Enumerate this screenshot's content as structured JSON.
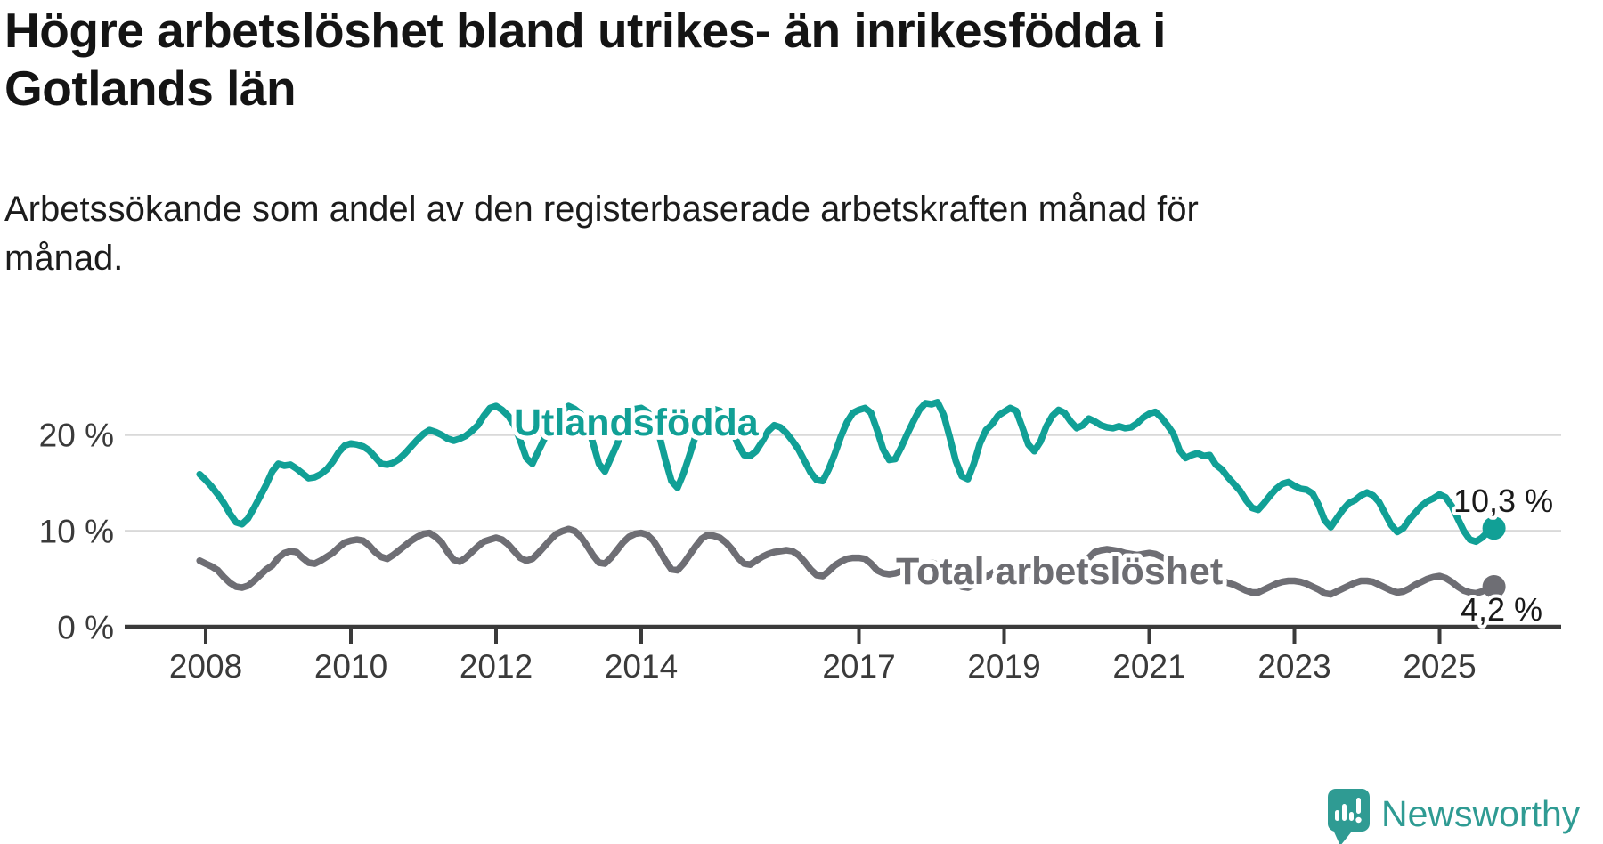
{
  "header": {
    "title": "Högre arbetslöshet bland utrikes- än inrikesfödda i\nGotlands län",
    "subtitle": "Arbetssökande som andel av den registerbaserade arbetskraften månad för\nmånad."
  },
  "branding": {
    "name": "Newsworthy",
    "icon": "speech-bubble-bar-chart",
    "color": "#2f9b93"
  },
  "colors": {
    "accent_teal": "#11a096",
    "line_gray": "#6e6e74",
    "label_gray": "#6d6d72",
    "grid": "#d9d9d9",
    "axis": "#3a3a3a",
    "text": "#1a1a1a"
  },
  "chart_data": {
    "type": "line",
    "title": "Högre arbetslöshet bland utrikes- än inrikesfödda i Gotlands län",
    "subtitle": "Arbetssökande som andel av den registerbaserade arbetskraften månad för månad.",
    "unit": "%",
    "interval": "monthly",
    "start": "2007-12",
    "end": "2025-10",
    "grid": "horizontal",
    "ylim": [
      0,
      24.5
    ],
    "y_ticks": [
      {
        "value": 0,
        "label": "0 %"
      },
      {
        "value": 10,
        "label": "10 %"
      },
      {
        "value": 20,
        "label": "20 %"
      }
    ],
    "x_tick_years": [
      {
        "year": 2008,
        "label": "2008"
      },
      {
        "year": 2010,
        "label": "2010"
      },
      {
        "year": 2012,
        "label": "2012"
      },
      {
        "year": 2014,
        "label": "2014"
      },
      {
        "year": 2017,
        "label": "2017"
      },
      {
        "year": 2019,
        "label": "2019"
      },
      {
        "year": 2021,
        "label": "2021"
      },
      {
        "year": 2023,
        "label": "2023"
      },
      {
        "year": 2025,
        "label": "2025"
      }
    ],
    "series": [
      {
        "name": "Utlandsfödda",
        "color": "#11a096",
        "final_label": "10,3 %",
        "final_value": 10.3,
        "values": [
          15.9,
          15.3,
          14.6,
          13.8,
          12.9,
          11.8,
          10.9,
          10.7,
          11.3,
          12.4,
          13.6,
          14.8,
          16.2,
          17.0,
          16.8,
          16.9,
          16.5,
          16.0,
          15.5,
          15.6,
          15.9,
          16.4,
          17.2,
          18.2,
          18.9,
          19.1,
          19.0,
          18.8,
          18.4,
          17.7,
          17.0,
          16.9,
          17.1,
          17.5,
          18.1,
          18.8,
          19.5,
          20.1,
          20.5,
          20.3,
          20.0,
          19.6,
          19.4,
          19.6,
          19.9,
          20.4,
          21.0,
          22.0,
          22.8,
          23.0,
          22.6,
          22.0,
          21.0,
          19.4,
          17.6,
          17.0,
          18.3,
          19.6,
          20.6,
          21.5,
          22.5,
          23.0,
          22.7,
          22.2,
          21.2,
          19.2,
          17.0,
          16.2,
          17.6,
          19.0,
          20.6,
          21.9,
          22.7,
          22.8,
          22.4,
          21.6,
          19.9,
          17.4,
          15.2,
          14.5,
          16.0,
          17.9,
          19.9,
          21.4,
          22.4,
          22.7,
          22.5,
          21.8,
          20.6,
          19.0,
          17.9,
          17.8,
          18.3,
          19.3,
          20.4,
          21.0,
          20.8,
          20.2,
          19.4,
          18.5,
          17.3,
          16.1,
          15.3,
          15.2,
          16.4,
          18.0,
          19.8,
          21.3,
          22.3,
          22.6,
          22.8,
          22.3,
          20.5,
          18.5,
          17.4,
          17.5,
          18.7,
          20.1,
          21.4,
          22.6,
          23.3,
          23.2,
          23.4,
          22.1,
          19.8,
          17.3,
          15.7,
          15.4,
          17.0,
          19.1,
          20.5,
          21.1,
          22.0,
          22.4,
          22.8,
          22.5,
          20.8,
          19.0,
          18.3,
          19.3,
          20.9,
          22.0,
          22.6,
          22.3,
          21.4,
          20.7,
          21.0,
          21.7,
          21.4,
          21.0,
          20.8,
          20.7,
          20.9,
          20.7,
          20.8,
          21.2,
          21.8,
          22.2,
          22.4,
          21.8,
          21.0,
          20.1,
          18.4,
          17.6,
          17.9,
          18.1,
          17.8,
          17.9,
          16.9,
          16.4,
          15.6,
          14.9,
          14.2,
          13.2,
          12.4,
          12.2,
          12.9,
          13.7,
          14.4,
          14.9,
          15.1,
          14.7,
          14.4,
          14.3,
          13.9,
          12.7,
          11.1,
          10.4,
          11.3,
          12.2,
          12.9,
          13.2,
          13.7,
          14.0,
          13.7,
          13.0,
          11.8,
          10.6,
          9.9,
          10.3,
          11.2,
          11.9,
          12.6,
          13.1,
          13.4,
          13.8,
          13.5,
          12.6,
          11.3,
          10.0,
          9.1,
          8.9,
          9.3,
          9.9,
          10.3
        ]
      },
      {
        "name": "Total arbetslöshet",
        "color": "#6e6e74",
        "final_label": "4,2 %",
        "final_value": 4.2,
        "values": [
          6.9,
          6.6,
          6.3,
          5.9,
          5.2,
          4.6,
          4.2,
          4.1,
          4.3,
          4.8,
          5.4,
          6.0,
          6.4,
          7.2,
          7.7,
          7.9,
          7.8,
          7.2,
          6.7,
          6.6,
          6.9,
          7.3,
          7.7,
          8.3,
          8.8,
          9.0,
          9.1,
          9.0,
          8.5,
          7.8,
          7.3,
          7.1,
          7.5,
          8.0,
          8.5,
          9.0,
          9.4,
          9.7,
          9.8,
          9.4,
          8.8,
          7.8,
          7.0,
          6.8,
          7.2,
          7.8,
          8.4,
          8.9,
          9.1,
          9.3,
          9.1,
          8.6,
          7.9,
          7.2,
          6.9,
          7.1,
          7.7,
          8.4,
          9.1,
          9.7,
          10.0,
          10.2,
          10.0,
          9.4,
          8.5,
          7.5,
          6.7,
          6.6,
          7.2,
          8.0,
          8.8,
          9.4,
          9.7,
          9.8,
          9.6,
          9.0,
          8.0,
          6.9,
          6.0,
          5.9,
          6.6,
          7.5,
          8.4,
          9.2,
          9.6,
          9.5,
          9.3,
          8.8,
          8.1,
          7.2,
          6.6,
          6.5,
          6.9,
          7.3,
          7.6,
          7.8,
          7.9,
          8.0,
          7.9,
          7.5,
          6.8,
          6.0,
          5.4,
          5.3,
          5.8,
          6.4,
          6.8,
          7.1,
          7.2,
          7.2,
          7.1,
          6.6,
          5.9,
          5.6,
          5.5,
          5.6,
          5.8,
          6.0,
          6.2,
          6.4,
          6.6,
          6.7,
          6.5,
          6.0,
          5.3,
          4.6,
          4.2,
          4.1,
          4.4,
          4.8,
          5.2,
          5.6,
          6.0,
          6.2,
          6.1,
          5.8,
          5.3,
          4.9,
          4.6,
          4.8,
          5.2,
          5.6,
          5.9,
          6.1,
          6.3,
          6.5,
          6.6,
          7.2,
          7.8,
          8.0,
          8.1,
          8.0,
          7.9,
          7.7,
          7.6,
          7.5,
          7.6,
          7.7,
          7.6,
          7.3,
          6.8,
          6.4,
          6.0,
          5.7,
          5.5,
          5.3,
          5.1,
          5.0,
          4.9,
          4.8,
          4.6,
          4.4,
          4.1,
          3.8,
          3.6,
          3.6,
          3.9,
          4.2,
          4.5,
          4.7,
          4.8,
          4.8,
          4.7,
          4.5,
          4.2,
          3.9,
          3.5,
          3.4,
          3.7,
          4.0,
          4.3,
          4.6,
          4.8,
          4.8,
          4.7,
          4.4,
          4.1,
          3.8,
          3.6,
          3.7,
          4.0,
          4.4,
          4.7,
          5.0,
          5.2,
          5.3,
          5.1,
          4.7,
          4.2,
          3.8,
          3.6,
          3.5,
          3.7,
          4.0,
          4.2
        ]
      }
    ]
  }
}
